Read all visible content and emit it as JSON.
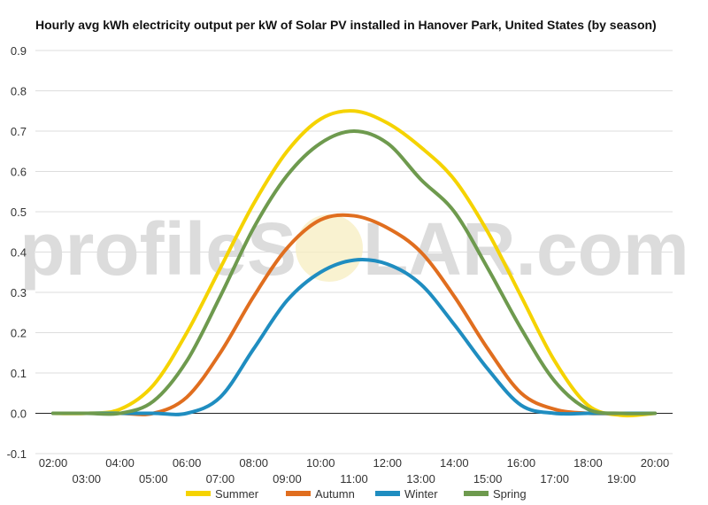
{
  "watermark": {
    "left": "profileS",
    "right": "LAR.com"
  },
  "chart_data": {
    "type": "line",
    "title": "Hourly avg kWh electricity output per kW of Solar PV installed in Hanover Park, United States (by season)",
    "xlabel": "",
    "ylabel": "",
    "x": [
      "02:00",
      "03:00",
      "04:00",
      "05:00",
      "06:00",
      "07:00",
      "08:00",
      "09:00",
      "10:00",
      "11:00",
      "12:00",
      "13:00",
      "14:00",
      "15:00",
      "16:00",
      "17:00",
      "18:00",
      "19:00",
      "20:00"
    ],
    "ylim": [
      -0.1,
      0.9
    ],
    "yticks": [
      "-0.1",
      "0.0",
      "0.1",
      "0.2",
      "0.3",
      "0.4",
      "0.5",
      "0.6",
      "0.7",
      "0.8",
      "0.9"
    ],
    "grid": true,
    "legend_position": "bottom",
    "series": [
      {
        "name": "Summer",
        "color": "#F5D300",
        "values": [
          0,
          0,
          0.01,
          0.07,
          0.2,
          0.36,
          0.52,
          0.65,
          0.73,
          0.75,
          0.72,
          0.66,
          0.58,
          0.45,
          0.29,
          0.13,
          0.02,
          -0.005,
          0
        ]
      },
      {
        "name": "Autumn",
        "color": "#E06E1F",
        "values": [
          0,
          0,
          0,
          0,
          0.04,
          0.15,
          0.29,
          0.41,
          0.48,
          0.49,
          0.46,
          0.4,
          0.29,
          0.16,
          0.05,
          0.01,
          0,
          0,
          0
        ]
      },
      {
        "name": "Winter",
        "color": "#1F8DC0",
        "values": [
          0,
          0,
          0,
          0,
          0,
          0.04,
          0.16,
          0.28,
          0.35,
          0.38,
          0.37,
          0.32,
          0.22,
          0.11,
          0.02,
          0,
          0,
          0,
          0
        ]
      },
      {
        "name": "Spring",
        "color": "#6E9A4E",
        "values": [
          0,
          0,
          0,
          0.03,
          0.13,
          0.29,
          0.46,
          0.59,
          0.67,
          0.7,
          0.67,
          0.58,
          0.5,
          0.36,
          0.21,
          0.08,
          0.01,
          0,
          0
        ]
      }
    ]
  }
}
